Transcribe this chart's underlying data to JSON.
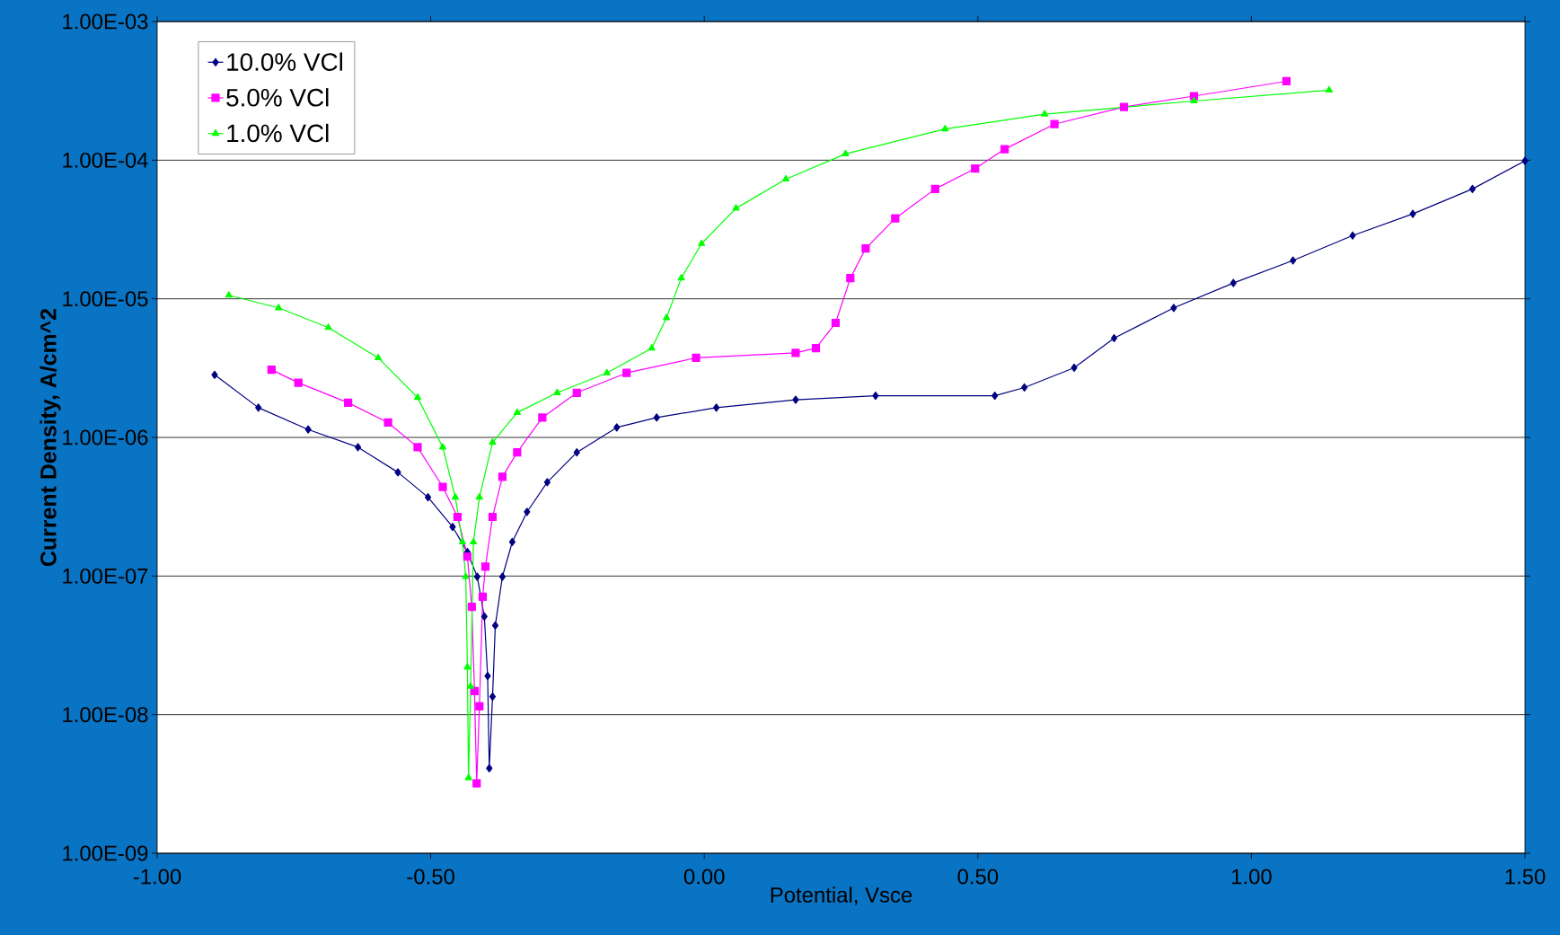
{
  "chart_data": {
    "type": "line",
    "xlabel": "Potential, Vsce",
    "ylabel": "Current Density, A/cm^2",
    "log": "y",
    "grid": "y",
    "legend": "top left",
    "line_style": "solid",
    "xlim": [
      -1.0,
      1.5
    ],
    "xticks": [
      {
        "value": -1.0,
        "label": "-1.00"
      },
      {
        "value": -0.5,
        "label": "-0.50"
      },
      {
        "value": 0.0,
        "label": "0.00"
      },
      {
        "value": 0.5,
        "label": "0.50"
      },
      {
        "value": 1.0,
        "label": "1.00"
      },
      {
        "value": 1.5,
        "label": "1.50"
      }
    ],
    "ylim": [
      1e-09,
      0.001
    ],
    "yticks": [
      {
        "value": 1e-09,
        "label": "1.00E-09"
      },
      {
        "value": 1e-08,
        "label": "1.00E-08"
      },
      {
        "value": 1e-07,
        "label": "1.00E-07"
      },
      {
        "value": 1e-06,
        "label": "1.00E-06"
      },
      {
        "value": 1e-05,
        "label": "1.00E-05"
      },
      {
        "value": 0.0001,
        "label": "1.00E-04"
      },
      {
        "value": 0.001,
        "label": "1.00E-03"
      }
    ],
    "series": [
      {
        "name": "10.0% VCl",
        "color": "#000080",
        "marker": "diamond",
        "x": [
          -0.895,
          -0.815,
          -0.724,
          -0.633,
          -0.56,
          -0.505,
          -0.46,
          -0.433,
          -0.415,
          -0.402,
          -0.396,
          -0.393,
          -0.387,
          -0.382,
          -0.369,
          -0.351,
          -0.324,
          -0.287,
          -0.233,
          -0.16,
          -0.087,
          0.022,
          0.167,
          0.313,
          0.531,
          0.585,
          0.676,
          0.749,
          0.858,
          0.967,
          1.076,
          1.185,
          1.295,
          1.404,
          1.5
        ],
        "values": [
          2.83e-06,
          1.64e-06,
          1.14e-06,
          8.5e-07,
          5.6e-07,
          3.7e-07,
          2.26e-07,
          1.49e-07,
          9.9e-08,
          5.1e-08,
          1.9e-08,
          4.1e-09,
          1.35e-08,
          4.4e-08,
          9.9e-08,
          1.76e-07,
          2.9e-07,
          4.75e-07,
          7.8e-07,
          1.18e-06,
          1.39e-06,
          1.64e-06,
          1.87e-06,
          2e-06,
          2e-06,
          2.29e-06,
          3.18e-06,
          5.2e-06,
          8.6e-06,
          1.3e-05,
          1.89e-05,
          2.86e-05,
          4.1e-05,
          6.2e-05,
          9.9e-05
        ]
      },
      {
        "name": "5.0% VCl",
        "color": "#ff00ff",
        "marker": "square",
        "x": [
          -0.791,
          -0.742,
          -0.651,
          -0.578,
          -0.524,
          -0.478,
          -0.451,
          -0.433,
          -0.425,
          -0.42,
          -0.416,
          -0.411,
          -0.405,
          -0.4,
          -0.387,
          -0.369,
          -0.342,
          -0.296,
          -0.233,
          -0.142,
          -0.015,
          0.167,
          0.204,
          0.24,
          0.267,
          0.295,
          0.349,
          0.422,
          0.495,
          0.549,
          0.64,
          0.767,
          0.895,
          1.064
        ],
        "values": [
          3.08e-06,
          2.48e-06,
          1.78e-06,
          1.28e-06,
          8.5e-07,
          4.4e-07,
          2.67e-07,
          1.38e-07,
          6e-08,
          1.48e-08,
          3.2e-09,
          1.15e-08,
          7.1e-08,
          1.17e-07,
          2.67e-07,
          5.2e-07,
          7.8e-07,
          1.39e-06,
          2.1e-06,
          2.92e-06,
          3.75e-06,
          4.07e-06,
          4.4e-06,
          6.7e-06,
          1.41e-05,
          2.31e-05,
          3.8e-05,
          6.2e-05,
          8.7e-05,
          0.00012,
          0.000182,
          0.000242,
          0.00029,
          0.000371
        ]
      },
      {
        "name": "1.0% VCl",
        "color": "#00ff00",
        "marker": "triangle",
        "x": [
          -0.869,
          -0.778,
          -0.687,
          -0.596,
          -0.524,
          -0.478,
          -0.455,
          -0.442,
          -0.436,
          -0.433,
          -0.431,
          -0.427,
          -0.422,
          -0.411,
          -0.387,
          -0.342,
          -0.269,
          -0.178,
          -0.096,
          -0.069,
          -0.042,
          -0.005,
          0.058,
          0.149,
          0.258,
          0.44,
          0.622,
          0.895,
          1.142
        ],
        "values": [
          1.06e-05,
          8.6e-06,
          6.2e-06,
          3.75e-06,
          1.94e-06,
          8.5e-07,
          3.7e-07,
          1.76e-07,
          9.9e-08,
          2.2e-08,
          3.5e-09,
          1.6e-08,
          1.76e-07,
          3.7e-07,
          9.2e-07,
          1.51e-06,
          2.1e-06,
          2.92e-06,
          4.4e-06,
          7.3e-06,
          1.41e-05,
          2.5e-05,
          4.5e-05,
          7.3e-05,
          0.000111,
          0.000168,
          0.000215,
          0.000267,
          0.00032
        ]
      }
    ]
  }
}
